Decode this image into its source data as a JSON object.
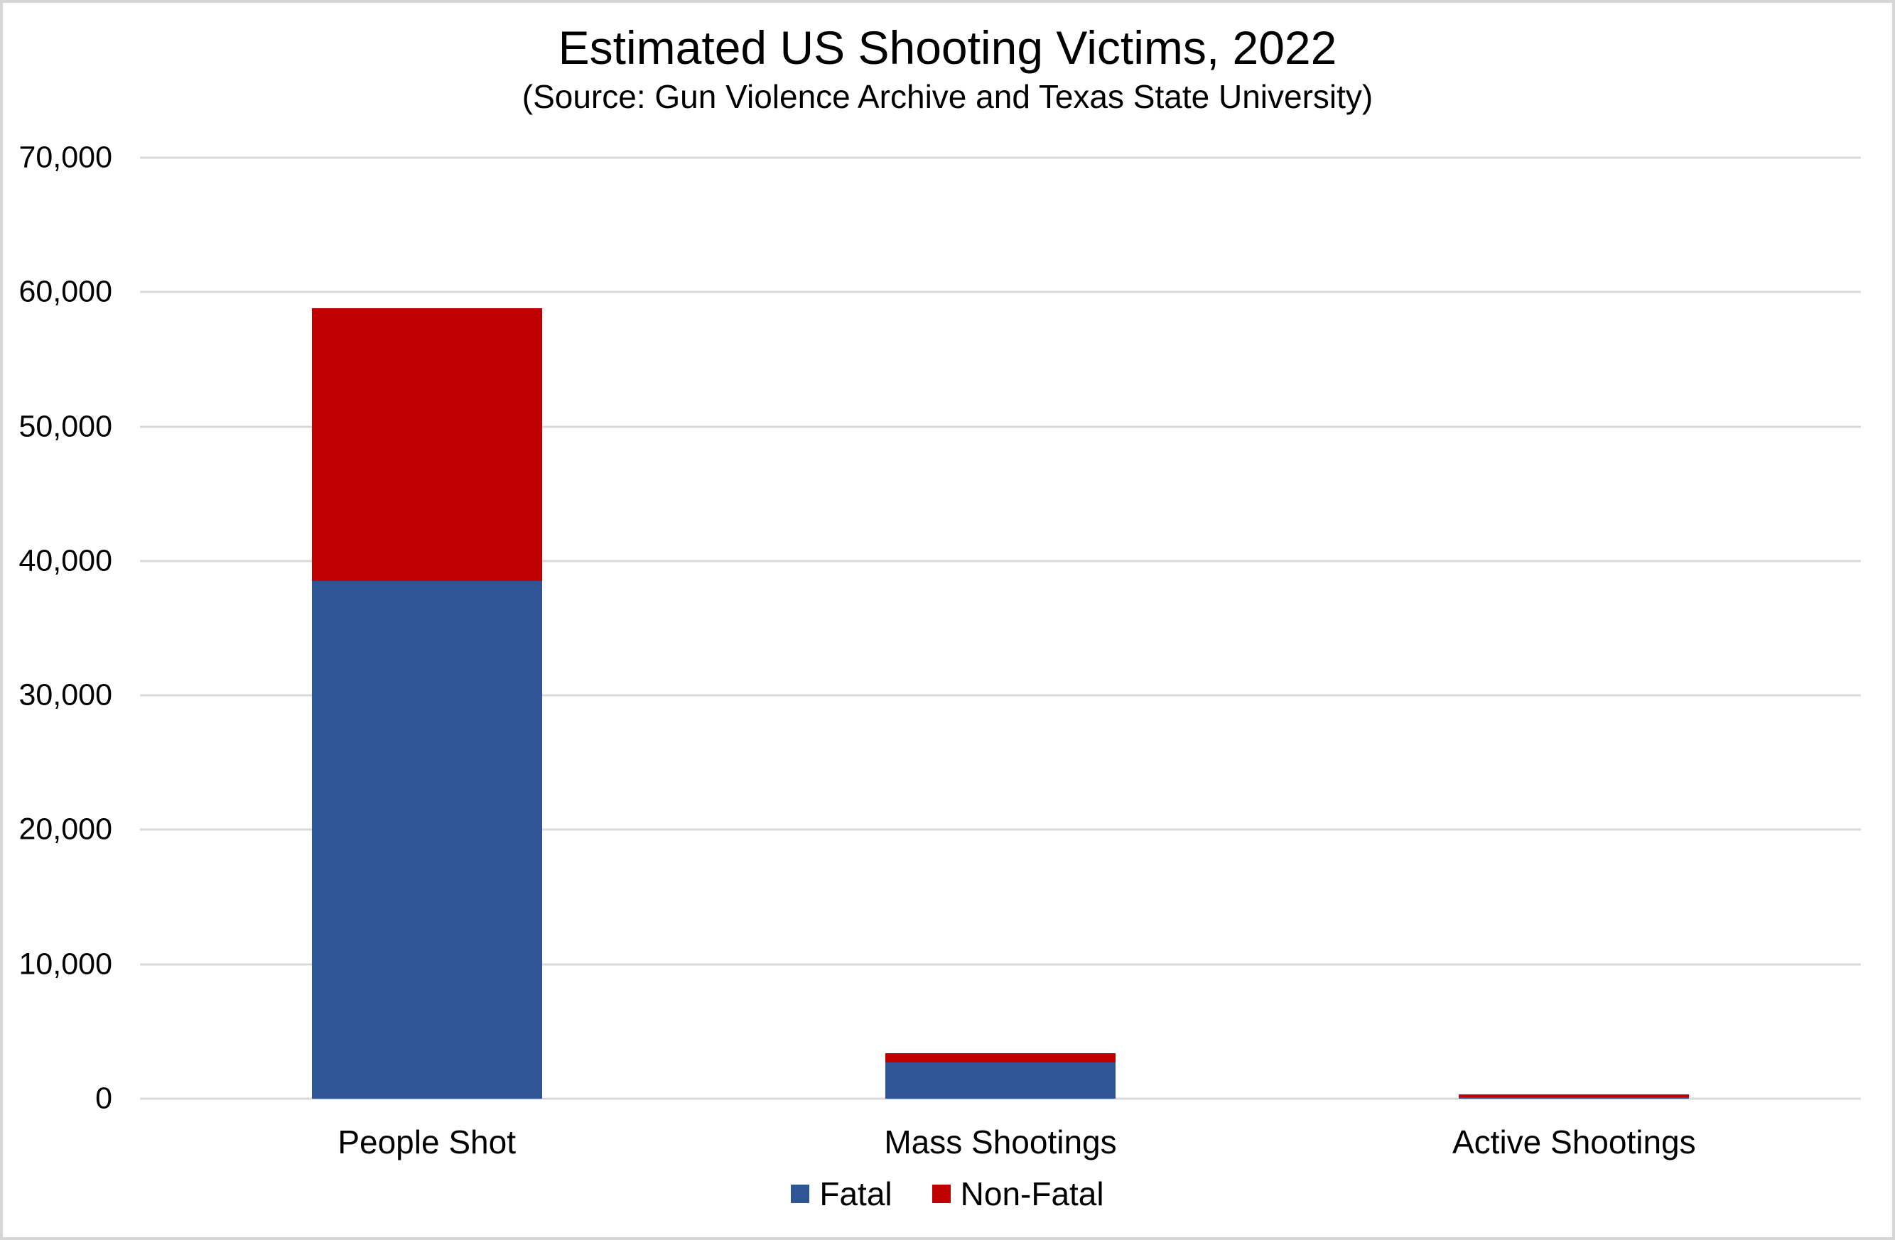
{
  "page": {
    "background": "#ffffff",
    "frame_border_color": "#d6d6d6"
  },
  "chart_data": {
    "type": "bar",
    "stacked": true,
    "title": "Estimated US Shooting Victims, 2022",
    "subtitle": "(Source: Gun Violence Archive and Texas State University)",
    "categories": [
      "People Shot",
      "Mass Shootings",
      "Active Shootings"
    ],
    "series": [
      {
        "name": "Fatal",
        "color": "#2F5597",
        "values": [
          38500,
          2700,
          100
        ]
      },
      {
        "name": "Non-Fatal",
        "color": "#C00000",
        "values": [
          20300,
          700,
          213
        ]
      }
    ],
    "ylim": [
      0,
      70000
    ],
    "y_tick_interval": 10000,
    "y_tick_labels": [
      "0",
      "10,000",
      "20,000",
      "30,000",
      "40,000",
      "50,000",
      "60,000",
      "70,000"
    ],
    "grid": true,
    "gridline_color": "#D9D9D9",
    "legend_position": "bottom",
    "legend": [
      "Fatal",
      "Non-Fatal"
    ]
  }
}
